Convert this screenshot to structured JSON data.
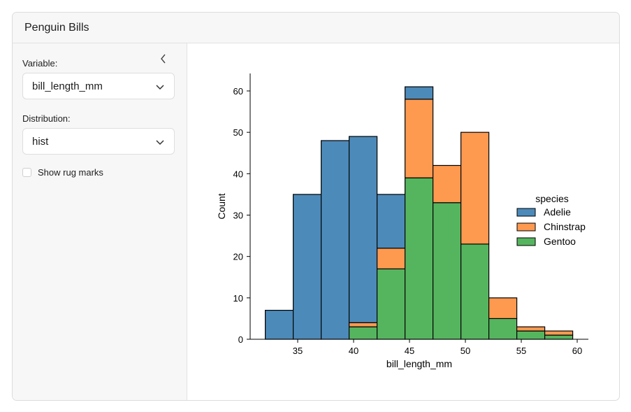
{
  "header": {
    "title": "Penguin Bills"
  },
  "sidebar": {
    "collapse_icon": "chevron-left-icon",
    "variable_label": "Variable:",
    "variable_value": "bill_length_mm",
    "distribution_label": "Distribution:",
    "distribution_value": "hist",
    "rug_label": "Show rug marks",
    "rug_checked": false
  },
  "chart_data": {
    "type": "bar",
    "stacked": true,
    "xlabel": "bill_length_mm",
    "ylabel": "Count",
    "bin_edges": [
      32.1,
      34.6,
      37.1,
      39.6,
      42.1,
      44.6,
      47.1,
      49.6,
      52.1,
      54.6,
      57.1,
      59.6
    ],
    "xlim": [
      30.7,
      61.0
    ],
    "ylim": [
      0,
      64
    ],
    "xticks": [
      35,
      40,
      45,
      50,
      55,
      60
    ],
    "yticks": [
      0,
      10,
      20,
      30,
      40,
      50,
      60
    ],
    "legend": {
      "title": "species",
      "placement": "right"
    },
    "series": [
      {
        "name": "Adelie",
        "color": "#4c8ab9",
        "values": [
          7,
          35,
          48,
          45,
          13,
          3,
          0,
          0,
          0,
          0,
          0
        ]
      },
      {
        "name": "Chinstrap",
        "color": "#fe9950",
        "values": [
          0,
          0,
          0,
          1,
          5,
          19,
          9,
          27,
          5,
          1,
          1
        ]
      },
      {
        "name": "Gentoo",
        "color": "#55b55f",
        "values": [
          0,
          0,
          0,
          3,
          17,
          39,
          33,
          23,
          5,
          2,
          1
        ]
      }
    ],
    "stack_order_bottom_to_top": [
      "Gentoo",
      "Chinstrap",
      "Adelie"
    ]
  }
}
